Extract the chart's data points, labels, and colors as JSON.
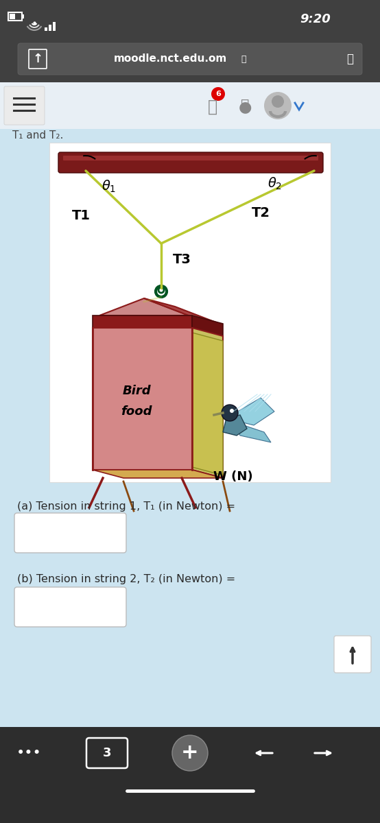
{
  "bg_top": "#3a3a3a",
  "bg_nav": "#3a3a3a",
  "bg_content": "#cce4f0",
  "bg_image": "#ffffff",
  "bg_bottom_bar": "#2d2d2d",
  "time_text": "9:20",
  "url_text": "moodle.nct.edu.om",
  "label_a": "(a) Tension in string 1, T₁ (in Newton) =",
  "label_b": "(b) Tension in string 2, T₂ (in Newton) =",
  "rod_color": "#7a1a1a",
  "rod_highlight": "#5a1010",
  "string_color": "#b8c830",
  "hook_color": "#005522",
  "birdhouse_front": "#d48888",
  "birdhouse_roof": "#8B1a1a",
  "birdhouse_side": "#c8c060",
  "birdhouse_side2": "#d4aa50",
  "text_color": "#2a2a2a",
  "input_box_color": "#ffffff",
  "input_box_border": "#aaaaaa",
  "notification_red": "#dd0000",
  "status_bar_color": "#404040",
  "nav_bar_color": "#404040",
  "url_bar_color": "#555555"
}
